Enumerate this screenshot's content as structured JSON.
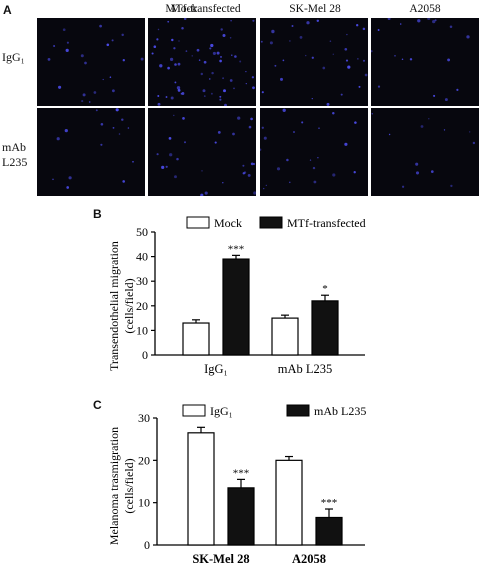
{
  "panel_a": {
    "letter": "A",
    "columns": [
      "Mock",
      "MTf-transfected",
      "SK-Mel 28",
      "A2058"
    ],
    "rows": [
      {
        "label_lines": [
          "IgG₁"
        ]
      },
      {
        "label_lines": [
          "mAb",
          "L235"
        ]
      }
    ],
    "cell_density": [
      [
        0.35,
        1.0,
        0.5,
        0.3
      ],
      [
        0.25,
        0.45,
        0.35,
        0.2
      ]
    ],
    "dot_color": "#4a4ae6"
  },
  "panel_b": {
    "letter": "B",
    "legend": [
      "Mock",
      "MTf-transfected"
    ],
    "ylabel_lines": [
      "Transendothelial migration",
      "(cells/field)"
    ],
    "significance": [
      "***",
      "*"
    ]
  },
  "panel_c": {
    "letter": "C",
    "legend": [
      "IgG₁",
      "mAb L235"
    ],
    "ylabel_lines": [
      "Melanoma trasmigration",
      "(cells/field)"
    ],
    "significance": [
      "***",
      "***"
    ]
  },
  "chart_data": [
    {
      "type": "bar",
      "panel": "B",
      "categories": [
        "IgG₁",
        "mAb L235"
      ],
      "series": [
        {
          "name": "Mock",
          "values": [
            13,
            15
          ],
          "errors": [
            1.3,
            1.2
          ],
          "fill": "#ffffff"
        },
        {
          "name": "MTf-transfected",
          "values": [
            39,
            22
          ],
          "errors": [
            1.5,
            2.3
          ],
          "fill": "#111111"
        }
      ],
      "ylim": [
        0,
        50
      ],
      "yticks": [
        0,
        10,
        20,
        30,
        40,
        50
      ],
      "ylabel": "Transendothelial migration (cells/field)"
    },
    {
      "type": "bar",
      "panel": "C",
      "categories": [
        "SK-Mel 28",
        "A2058"
      ],
      "series": [
        {
          "name": "IgG₁",
          "values": [
            26.5,
            20
          ],
          "errors": [
            1.3,
            0.9
          ],
          "fill": "#ffffff"
        },
        {
          "name": "mAb L235",
          "values": [
            13.5,
            6.5
          ],
          "errors": [
            2.0,
            2.0
          ],
          "fill": "#111111"
        }
      ],
      "ylim": [
        0,
        30
      ],
      "yticks": [
        0,
        10,
        20,
        30
      ],
      "ylabel": "Melanoma trasmigration (cells/field)"
    }
  ]
}
